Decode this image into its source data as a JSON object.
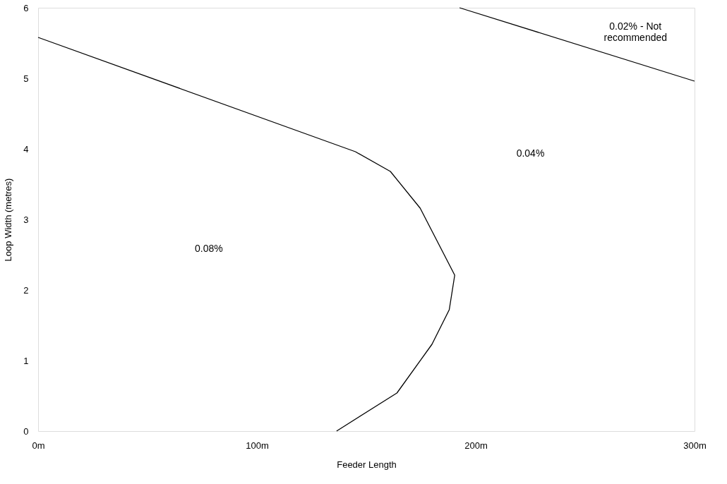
{
  "chart_data": {
    "type": "line",
    "xlabel": "Feeder Length",
    "ylabel": "Loop Width (metres)",
    "xlim": [
      0,
      300
    ],
    "ylim": [
      0,
      6
    ],
    "xticks": [
      {
        "value": 0,
        "label": "0m"
      },
      {
        "value": 100,
        "label": "100m"
      },
      {
        "value": 200,
        "label": "200m"
      },
      {
        "value": 300,
        "label": "300m"
      }
    ],
    "yticks": [
      0,
      1,
      2,
      3,
      4,
      5,
      6
    ],
    "grid": false,
    "marker": "none",
    "line_style": "solid",
    "series": [
      {
        "color": "#000000",
        "x": [
          0,
          145,
          161,
          174.6,
          190.4,
          187.9,
          180,
          164,
          136.4
        ],
        "values": [
          5.58,
          3.96,
          3.68,
          3.16,
          2.21,
          1.72,
          1.23,
          0.54,
          0
        ]
      },
      {
        "color": "#000000",
        "x": [
          192.6,
          300
        ],
        "values": [
          6.0,
          4.96
        ]
      }
    ],
    "annotations": [
      "0.08%",
      "0.04%",
      "0.02% - Not\nrecommended"
    ]
  }
}
